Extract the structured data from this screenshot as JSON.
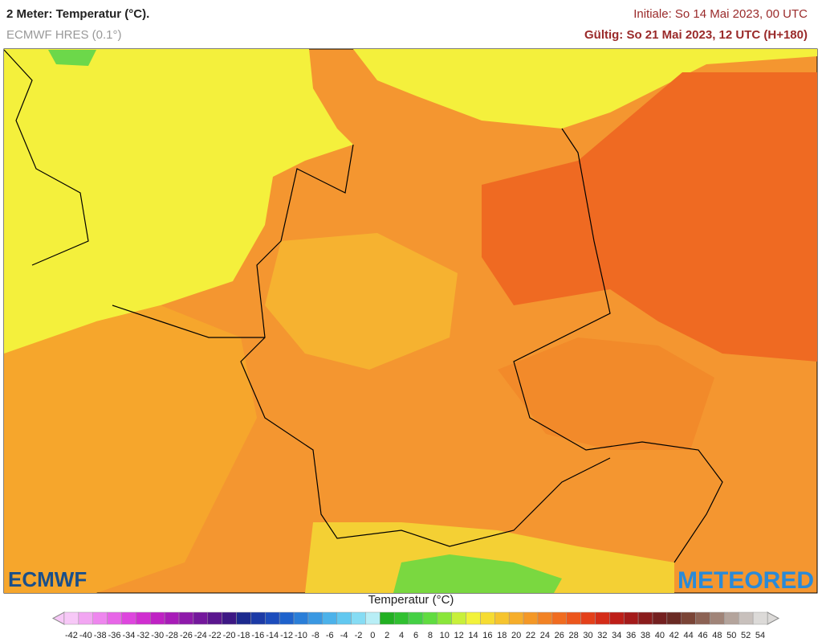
{
  "header": {
    "title": "2 Meter: Temperatur (°C).",
    "model": "ECMWF HRES (0.1°)",
    "initial": "Initiale: So 14 Mai 2023, 00 UTC",
    "valid": "Gültig: So 21 Mai 2023, 12 UTC (H+180)"
  },
  "logos": {
    "left": "ECMWF",
    "right": "METEORED"
  },
  "legend": {
    "title": "Temperatur (°C)",
    "ticks": [
      -42,
      -40,
      -38,
      -36,
      -34,
      -32,
      -30,
      -28,
      -26,
      -24,
      -22,
      -20,
      -18,
      -16,
      -14,
      -12,
      -10,
      -8,
      -6,
      -4,
      -2,
      0,
      2,
      4,
      6,
      8,
      10,
      12,
      14,
      16,
      18,
      20,
      22,
      24,
      26,
      28,
      30,
      32,
      34,
      36,
      38,
      40,
      42,
      44,
      46,
      48,
      50,
      52,
      54
    ],
    "colors": [
      "#f7c8f7",
      "#f2a6f2",
      "#ee86ee",
      "#e766e7",
      "#de46de",
      "#d02ed0",
      "#bf22c4",
      "#a81cb8",
      "#8e1aaa",
      "#74189c",
      "#5a168e",
      "#3d1884",
      "#1c2a8e",
      "#1c3aa6",
      "#1c4cbc",
      "#1e62cc",
      "#2a7ed8",
      "#3a98e2",
      "#4cb2ea",
      "#62c8f0",
      "#86dcf4",
      "#b8eef6",
      "#22b022",
      "#30c030",
      "#44d044",
      "#60dc40",
      "#8ae63a",
      "#c8f03a",
      "#f2f23a",
      "#f6dc32",
      "#f6c42e",
      "#f6ae2a",
      "#f49826",
      "#f28224",
      "#f06c20",
      "#ec561c",
      "#e4401a",
      "#d42c18",
      "#be1e18",
      "#a41a1a",
      "#8a1c1c",
      "#742020",
      "#6a2a24",
      "#7a4436",
      "#8c6254",
      "#a08478",
      "#b4a49c",
      "#c8c0bc",
      "#dcdad8"
    ]
  }
}
